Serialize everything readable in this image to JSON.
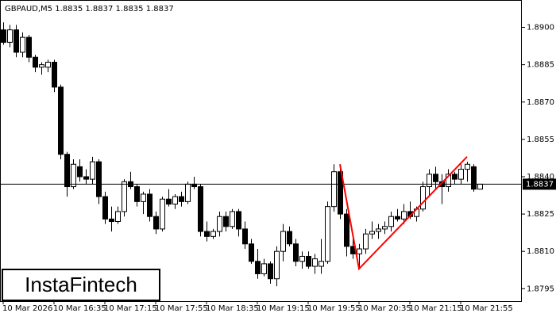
{
  "chart_data": {
    "type": "candlestick",
    "title": "GBPAUD,M5  1.8835 1.8837 1.8835 1.8837",
    "logo": "InstaFintech",
    "categories": [
      "10 Mar 2026",
      null,
      null,
      null,
      null,
      null,
      null,
      null,
      "10 Mar 16:35",
      null,
      null,
      null,
      null,
      null,
      null,
      null,
      "10 Mar 17:15",
      null,
      null,
      null,
      null,
      null,
      null,
      null,
      "10 Mar 17:55",
      null,
      null,
      null,
      null,
      null,
      null,
      null,
      "10 Mar 18:35",
      null,
      null,
      null,
      null,
      null,
      null,
      null,
      "10 Mar 19:15",
      null,
      null,
      null,
      null,
      null,
      null,
      null,
      "10 Mar 19:55",
      null,
      null,
      null,
      null,
      null,
      null,
      null,
      "10 Mar 20:35",
      null,
      null,
      null,
      null,
      null,
      null,
      null,
      "10 Mar 21:15",
      null,
      null,
      null,
      null,
      null,
      null,
      null,
      "10 Mar 21:55",
      null,
      null,
      null
    ],
    "open": [
      1.8899,
      1.8894,
      1.8899,
      1.889,
      1.8896,
      1.8888,
      1.8884,
      1.8884,
      1.8886,
      1.8876,
      1.8849,
      1.8836,
      1.8844,
      1.884,
      1.8839,
      1.8846,
      1.8832,
      1.8823,
      1.8822,
      1.8826,
      1.8838,
      1.8836,
      1.883,
      1.8833,
      1.8824,
      1.8819,
      1.8831,
      1.8829,
      1.8832,
      1.883,
      1.8837,
      1.8836,
      1.8818,
      1.8816,
      1.8818,
      1.8824,
      1.882,
      1.8826,
      1.8819,
      1.8813,
      1.8806,
      1.8801,
      1.8805,
      1.8799,
      1.881,
      1.8818,
      1.8813,
      1.8806,
      1.8808,
      1.8804,
      1.8804,
      1.8806,
      1.8828,
      1.8842,
      1.8825,
      1.8812,
      1.8809,
      1.8811,
      1.8817,
      1.8818,
      1.8819,
      1.882,
      1.8824,
      1.8823,
      1.8826,
      1.8824,
      1.8827,
      1.8836,
      1.8841,
      1.8838,
      1.8836,
      1.8841,
      1.8839,
      1.8843,
      1.8844,
      1.8835
    ],
    "high": [
      1.8902,
      1.8901,
      1.8901,
      1.8898,
      1.8897,
      1.8889,
      1.8886,
      1.8887,
      1.8887,
      1.8877,
      1.885,
      1.8847,
      1.8847,
      1.8843,
      1.8848,
      1.8847,
      1.8834,
      1.8828,
      1.8828,
      1.8839,
      1.8842,
      1.8837,
      1.8834,
      1.8835,
      1.8826,
      1.8832,
      1.8835,
      1.8833,
      1.8834,
      1.8838,
      1.884,
      1.8837,
      1.8822,
      1.8819,
      1.8826,
      1.8826,
      1.8827,
      1.8827,
      1.8822,
      1.8815,
      1.8811,
      1.8807,
      1.8806,
      1.8812,
      1.8821,
      1.882,
      1.8815,
      1.881,
      1.881,
      1.8809,
      1.8815,
      1.883,
      1.8845,
      1.8845,
      1.8827,
      1.8815,
      1.8813,
      1.8819,
      1.8822,
      1.8821,
      1.8822,
      1.8826,
      1.8827,
      1.8829,
      1.883,
      1.8828,
      1.8838,
      1.8843,
      1.8844,
      1.8841,
      1.8843,
      1.8842,
      1.8845,
      1.8846,
      1.8845,
      1.8837
    ],
    "low": [
      1.8893,
      1.8892,
      1.8888,
      1.8888,
      1.8886,
      1.8882,
      1.8881,
      1.8882,
      1.8874,
      1.8847,
      1.8832,
      1.8835,
      1.8838,
      1.8837,
      1.8837,
      1.8829,
      1.8821,
      1.8818,
      1.8821,
      1.8824,
      1.8835,
      1.8828,
      1.8825,
      1.8822,
      1.8817,
      1.8818,
      1.8828,
      1.8827,
      1.8828,
      1.8829,
      1.8835,
      1.8816,
      1.8814,
      1.8815,
      1.8816,
      1.8818,
      1.8819,
      1.8816,
      1.8811,
      1.8805,
      1.8799,
      1.88,
      1.8797,
      1.8796,
      1.8806,
      1.8812,
      1.8804,
      1.8803,
      1.8803,
      1.8801,
      1.8801,
      1.8805,
      1.8826,
      1.8823,
      1.8808,
      1.8807,
      1.8803,
      1.8809,
      1.8815,
      1.8815,
      1.8817,
      1.8818,
      1.8822,
      1.8821,
      1.8823,
      1.8822,
      1.8826,
      1.8832,
      1.8835,
      1.8829,
      1.8834,
      1.8837,
      1.8837,
      1.8838,
      1.8834,
      1.8835
    ],
    "close": [
      1.8894,
      1.8899,
      1.889,
      1.8896,
      1.8888,
      1.8884,
      1.8885,
      1.8886,
      1.8876,
      1.8849,
      1.8836,
      1.8845,
      1.884,
      1.8839,
      1.8846,
      1.8832,
      1.8823,
      1.8822,
      1.8826,
      1.8838,
      1.8836,
      1.883,
      1.8833,
      1.8824,
      1.8819,
      1.8831,
      1.8829,
      1.8832,
      1.883,
      1.8837,
      1.8836,
      1.8818,
      1.8816,
      1.8818,
      1.8824,
      1.882,
      1.8826,
      1.8819,
      1.8813,
      1.8806,
      1.8801,
      1.8805,
      1.8799,
      1.881,
      1.8818,
      1.8813,
      1.8806,
      1.8808,
      1.8804,
      1.8807,
      1.8806,
      1.8828,
      1.8842,
      1.8825,
      1.8812,
      1.8809,
      1.8811,
      1.8817,
      1.8818,
      1.8819,
      1.882,
      1.8824,
      1.8823,
      1.8826,
      1.8824,
      1.8827,
      1.8836,
      1.8841,
      1.8838,
      1.8836,
      1.8841,
      1.8839,
      1.8843,
      1.8845,
      1.8835,
      1.8837
    ],
    "up_color": "#ffffff",
    "down_color": "#000000",
    "last_price": 1.8837,
    "pattern": {
      "color": "#ff0000",
      "x": [
        53,
        56,
        73
      ],
      "y": [
        1.8845,
        1.8803,
        1.8848
      ]
    },
    "ylim": [
      1.879,
      1.8911
    ],
    "yticks": [
      {
        "value": 1.89,
        "label": "1.8900"
      },
      1.8885,
      {
        "value": 1.887,
        "label": "1.8870"
      },
      1.8855,
      {
        "value": 1.884,
        "label": "1.8840"
      },
      1.8825,
      {
        "value": 1.881,
        "label": "1.8810"
      },
      1.8795
    ]
  }
}
